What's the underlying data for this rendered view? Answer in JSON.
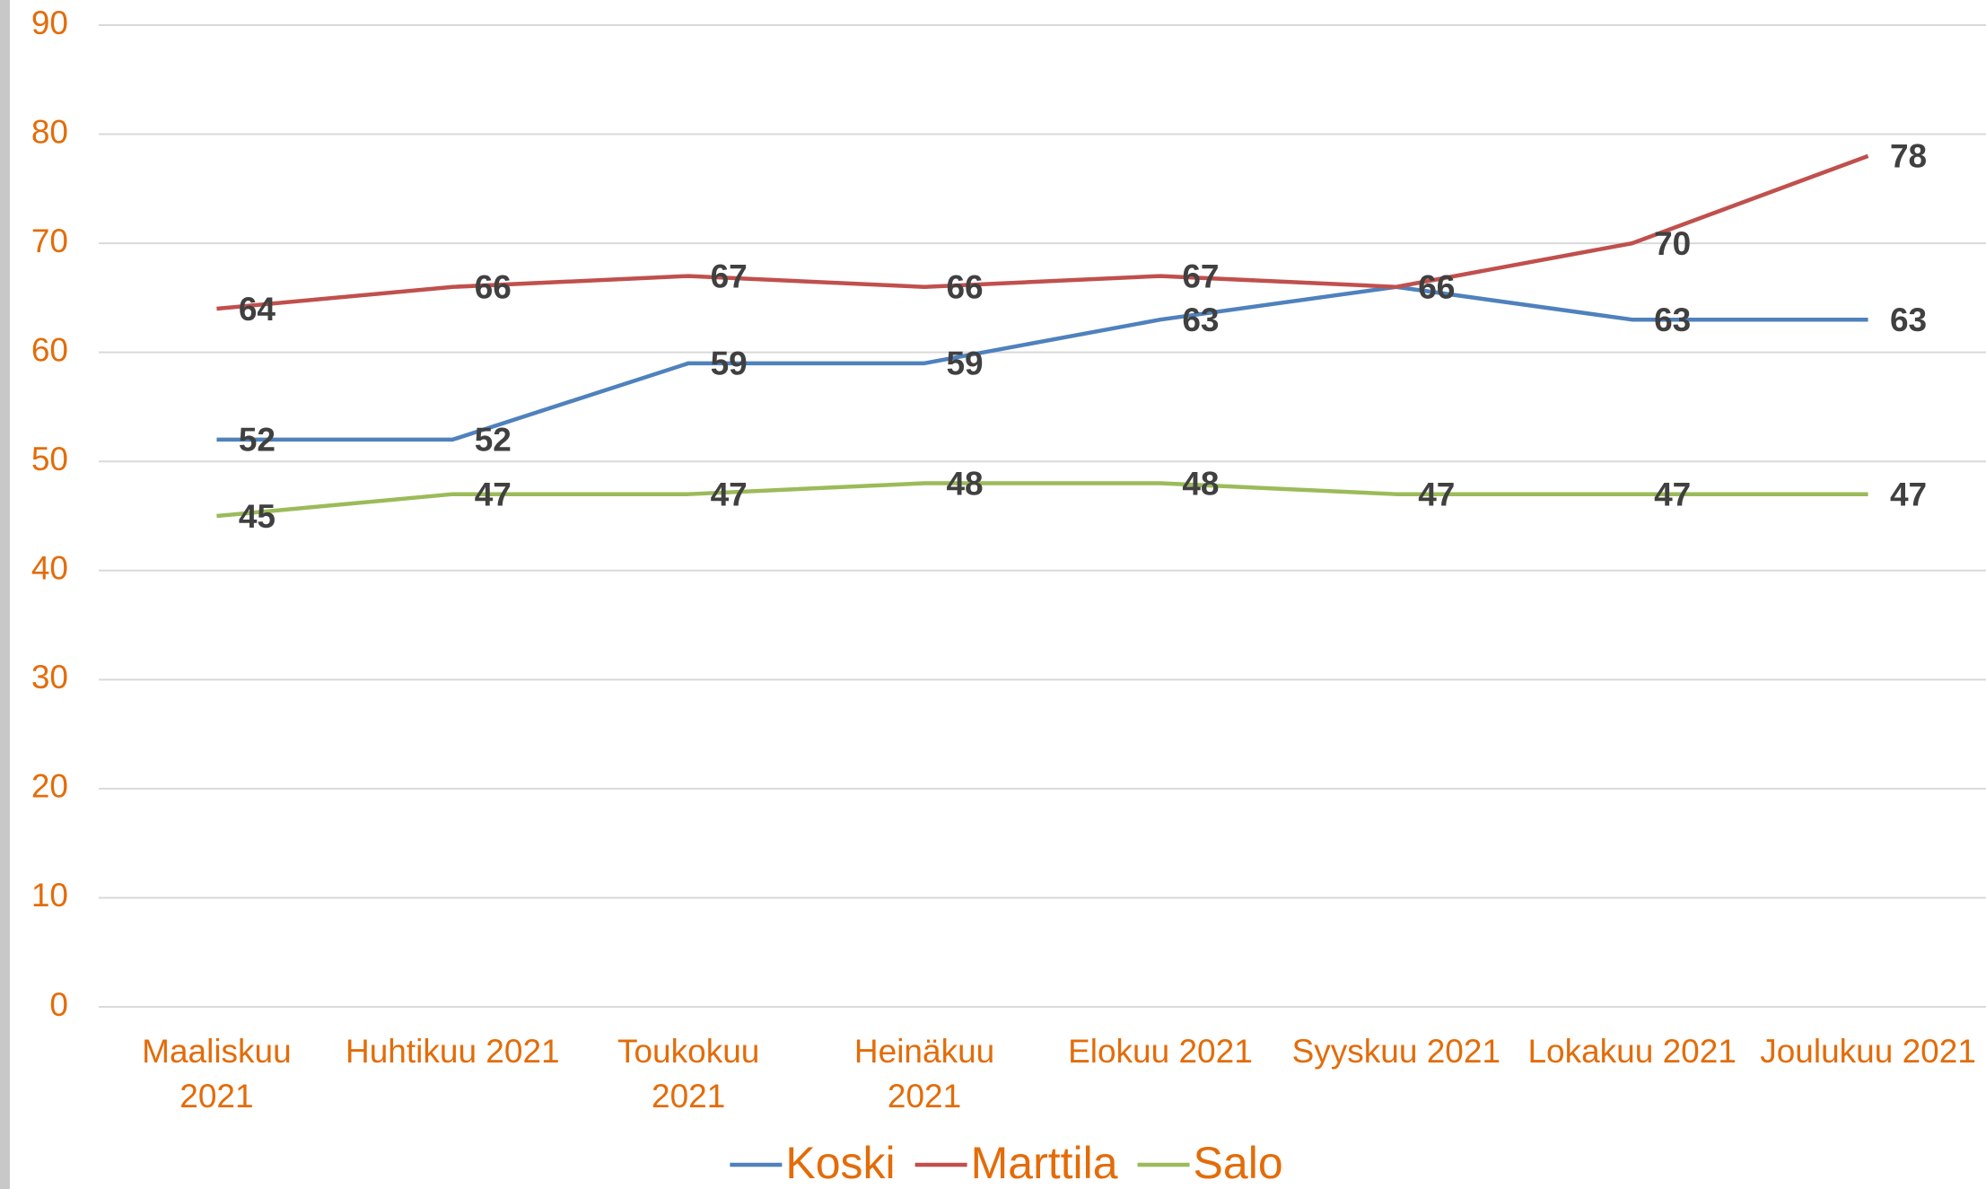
{
  "chart_data": {
    "type": "line",
    "categories": [
      "Maaliskuu 2021",
      "Huhtikuu 2021",
      "Toukokuu 2021",
      "Heinäkuu 2021",
      "Elokuu 2021",
      "Syyskuu 2021",
      "Lokakuu 2021",
      "Joulukuu 2021"
    ],
    "series": [
      {
        "name": "Koski",
        "color": "#4f81bd",
        "values": [
          52,
          52,
          59,
          59,
          63,
          66,
          63,
          63
        ]
      },
      {
        "name": "Marttila",
        "color": "#c0504d",
        "values": [
          64,
          66,
          67,
          66,
          67,
          66,
          70,
          78
        ]
      },
      {
        "name": "Salo",
        "color": "#9bbb59",
        "values": [
          45,
          47,
          47,
          48,
          48,
          47,
          47,
          47
        ]
      }
    ],
    "ylim": [
      0,
      90
    ],
    "yticks": [
      0,
      10,
      20,
      30,
      40,
      50,
      60,
      70,
      80,
      90
    ],
    "grid": true,
    "legend": "bottom"
  }
}
